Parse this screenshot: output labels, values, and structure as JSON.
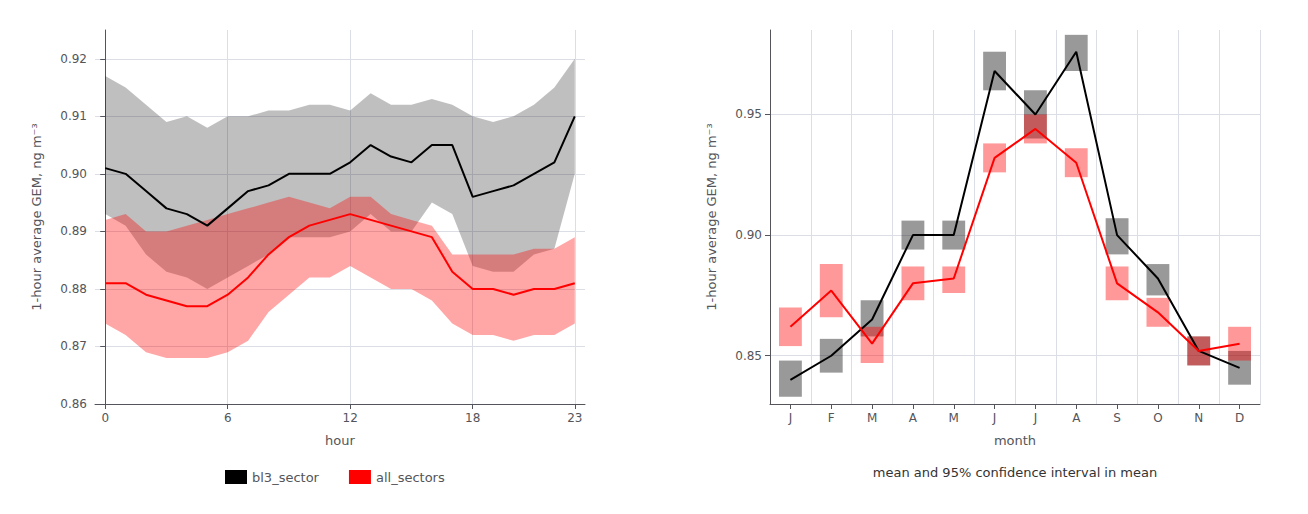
{
  "chart_data": [
    {
      "type": "line",
      "x": [
        0,
        1,
        2,
        3,
        4,
        5,
        6,
        7,
        8,
        9,
        10,
        11,
        12,
        13,
        14,
        15,
        16,
        17,
        18,
        19,
        20,
        21,
        22,
        23
      ],
      "xlabel": "hour",
      "ylabel": "1-hour average GEM, ng m⁻³",
      "xlim": [
        -0.5,
        23.5
      ],
      "xticks": [
        0,
        6,
        12,
        18,
        23
      ],
      "ylim": [
        0.86,
        0.925
      ],
      "yticks": [
        0.86,
        0.87,
        0.88,
        0.89,
        {
          "value": 0.9,
          "label": "0.90"
        },
        0.91,
        0.92
      ],
      "grid": true,
      "legend": "bottom",
      "series": [
        {
          "name": "bl3_sector",
          "color": "#000000",
          "values": [
            0.901,
            0.9,
            0.897,
            0.894,
            0.893,
            0.891,
            0.894,
            0.897,
            0.898,
            0.9,
            0.9,
            0.9,
            0.902,
            0.905,
            0.903,
            0.902,
            0.905,
            0.905,
            0.896,
            0.897,
            0.898,
            0.9,
            0.902,
            0.91
          ],
          "upper": [
            0.917,
            0.915,
            0.912,
            0.909,
            0.91,
            0.908,
            0.91,
            0.91,
            0.911,
            0.911,
            0.912,
            0.912,
            0.911,
            0.914,
            0.912,
            0.912,
            0.913,
            0.912,
            0.91,
            0.909,
            0.91,
            0.912,
            0.915,
            0.92
          ],
          "lower": [
            0.893,
            0.891,
            0.886,
            0.883,
            0.882,
            0.88,
            0.882,
            0.884,
            0.886,
            0.889,
            0.889,
            0.889,
            0.89,
            0.893,
            0.89,
            0.89,
            0.895,
            0.893,
            0.884,
            0.883,
            0.883,
            0.886,
            0.887,
            0.9
          ]
        },
        {
          "name": "all_sectors",
          "color": "#FF0000",
          "values": [
            0.881,
            0.881,
            0.879,
            0.878,
            0.877,
            0.877,
            0.879,
            0.882,
            0.886,
            0.889,
            0.891,
            0.892,
            0.893,
            0.892,
            0.891,
            0.89,
            0.889,
            0.883,
            0.88,
            0.88,
            0.879,
            0.88,
            0.88,
            0.881
          ],
          "upper": [
            0.892,
            0.893,
            0.89,
            0.89,
            0.891,
            0.892,
            0.893,
            0.894,
            0.895,
            0.896,
            0.895,
            0.894,
            0.896,
            0.896,
            0.893,
            0.892,
            0.891,
            0.886,
            0.886,
            0.886,
            0.886,
            0.887,
            0.887,
            0.889
          ],
          "lower": [
            0.874,
            0.872,
            0.869,
            0.868,
            0.868,
            0.868,
            0.869,
            0.871,
            0.876,
            0.879,
            0.882,
            0.882,
            0.884,
            0.882,
            0.88,
            0.88,
            0.878,
            0.874,
            0.872,
            0.872,
            0.871,
            0.872,
            0.872,
            0.874
          ]
        }
      ]
    },
    {
      "type": "line",
      "categories": [
        "J",
        "F",
        "M",
        "A",
        "M",
        "J",
        "J",
        "A",
        "S",
        "O",
        "N",
        "D"
      ],
      "xlabel": "month",
      "ylabel": "1-hour average GEM, ng m⁻³",
      "ylim": [
        0.83,
        0.985
      ],
      "yticks": [
        0.85,
        {
          "value": 0.9,
          "label": "0.90"
        },
        0.95
      ],
      "grid": true,
      "annotation": "mean and 95% confidence interval in mean",
      "series": [
        {
          "name": "bl3_sector",
          "color": "#000000",
          "values": [
            0.84,
            0.85,
            0.865,
            0.9,
            0.9,
            0.968,
            0.95,
            0.976,
            0.9,
            0.882,
            0.852,
            0.845
          ],
          "upper": [
            0.848,
            0.857,
            0.873,
            0.906,
            0.906,
            0.976,
            0.96,
            0.983,
            0.907,
            0.888,
            0.858,
            0.852
          ],
          "lower": [
            0.833,
            0.843,
            0.858,
            0.894,
            0.894,
            0.96,
            0.94,
            0.968,
            0.892,
            0.875,
            0.846,
            0.838
          ]
        },
        {
          "name": "all_sectors",
          "color": "#FF0000",
          "values": [
            0.862,
            0.877,
            0.855,
            0.88,
            0.882,
            0.932,
            0.944,
            0.93,
            0.88,
            0.868,
            0.852,
            0.855
          ],
          "upper": [
            0.87,
            0.888,
            0.862,
            0.887,
            0.887,
            0.938,
            0.95,
            0.936,
            0.887,
            0.874,
            0.858,
            0.862
          ],
          "lower": [
            0.854,
            0.866,
            0.847,
            0.873,
            0.876,
            0.926,
            0.938,
            0.924,
            0.873,
            0.862,
            0.846,
            0.848
          ]
        }
      ]
    }
  ]
}
